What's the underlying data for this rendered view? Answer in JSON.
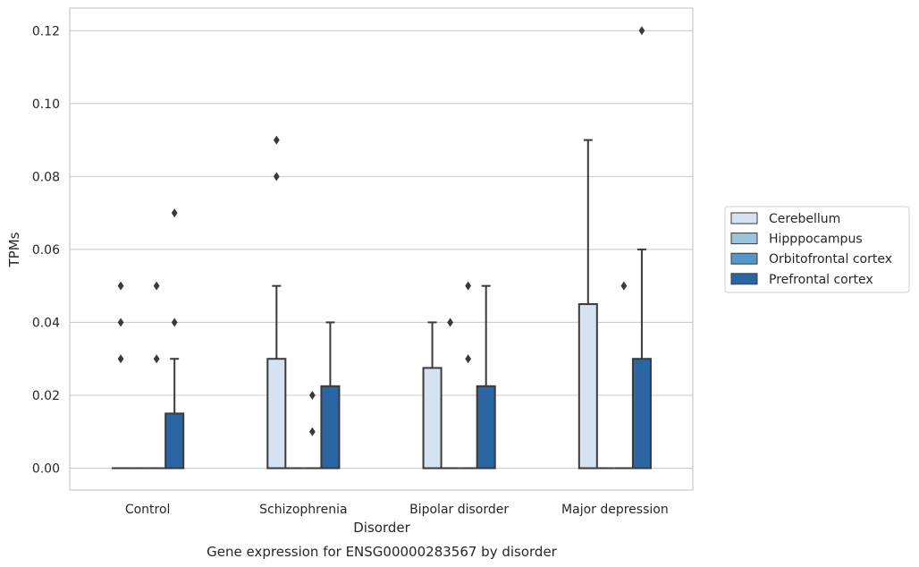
{
  "chart_data": {
    "type": "box",
    "caption": "Gene expression for ENSG00000283567 by disorder",
    "xlabel": "Disorder",
    "ylabel": "TPMs",
    "ylim": [
      -0.006,
      0.1262
    ],
    "yticks": [
      0.0,
      0.02,
      0.04,
      0.06,
      0.08,
      0.1,
      0.12
    ],
    "ytick_labels": [
      "0.00",
      "0.02",
      "0.04",
      "0.06",
      "0.08",
      "0.10",
      "0.12"
    ],
    "grid": "horizontal",
    "legend_position": "right",
    "categories": [
      "Control",
      "Schizophrenia",
      "Bipolar disorder",
      "Major depression"
    ],
    "series": [
      {
        "name": "Cerebellum",
        "color": "#d4e2f1",
        "boxes": [
          {
            "q1": 0,
            "median": 0,
            "q3": 0,
            "whisker_low": 0,
            "whisker_high": 0,
            "outliers": [
              0.03,
              0.04,
              0.05
            ]
          },
          {
            "q1": 0,
            "median": 0,
            "q3": 0.03,
            "whisker_low": 0,
            "whisker_high": 0.05,
            "outliers": [
              0.08,
              0.09
            ]
          },
          {
            "q1": 0,
            "median": 0,
            "q3": 0.0275,
            "whisker_low": 0,
            "whisker_high": 0.04,
            "outliers": []
          },
          {
            "q1": 0,
            "median": 0,
            "q3": 0.045,
            "whisker_low": 0,
            "whisker_high": 0.09,
            "outliers": []
          }
        ]
      },
      {
        "name": "Hipppocampus",
        "color": "#9ac3de",
        "boxes": [
          {
            "q1": 0,
            "median": 0,
            "q3": 0,
            "whisker_low": 0,
            "whisker_high": 0,
            "outliers": []
          },
          {
            "q1": 0,
            "median": 0,
            "q3": 0,
            "whisker_low": 0,
            "whisker_high": 0,
            "outliers": []
          },
          {
            "q1": 0,
            "median": 0,
            "q3": 0,
            "whisker_low": 0,
            "whisker_high": 0,
            "outliers": [
              0.04
            ]
          },
          {
            "q1": 0,
            "median": 0,
            "q3": 0,
            "whisker_low": 0,
            "whisker_high": 0,
            "outliers": []
          }
        ]
      },
      {
        "name": "Orbitofrontal cortex",
        "color": "#5597c8",
        "boxes": [
          {
            "q1": 0,
            "median": 0,
            "q3": 0,
            "whisker_low": 0,
            "whisker_high": 0,
            "outliers": [
              0.03,
              0.05
            ]
          },
          {
            "q1": 0,
            "median": 0,
            "q3": 0,
            "whisker_low": 0,
            "whisker_high": 0,
            "outliers": [
              0.01,
              0.02
            ]
          },
          {
            "q1": 0,
            "median": 0,
            "q3": 0,
            "whisker_low": 0,
            "whisker_high": 0,
            "outliers": [
              0.03,
              0.05
            ]
          },
          {
            "q1": 0,
            "median": 0,
            "q3": 0,
            "whisker_low": 0,
            "whisker_high": 0,
            "outliers": [
              0.05
            ]
          }
        ]
      },
      {
        "name": "Prefrontal cortex",
        "color": "#2a66a4",
        "boxes": [
          {
            "q1": 0,
            "median": 0,
            "q3": 0.015,
            "whisker_low": 0,
            "whisker_high": 0.03,
            "outliers": [
              0.04,
              0.07
            ]
          },
          {
            "q1": 0,
            "median": 0,
            "q3": 0.0225,
            "whisker_low": 0,
            "whisker_high": 0.04,
            "outliers": []
          },
          {
            "q1": 0,
            "median": 0,
            "q3": 0.0225,
            "whisker_low": 0,
            "whisker_high": 0.05,
            "outliers": []
          },
          {
            "q1": 0,
            "median": 0,
            "q3": 0.03,
            "whisker_low": 0,
            "whisker_high": 0.06,
            "outliers": [
              0.12
            ]
          }
        ]
      }
    ]
  }
}
